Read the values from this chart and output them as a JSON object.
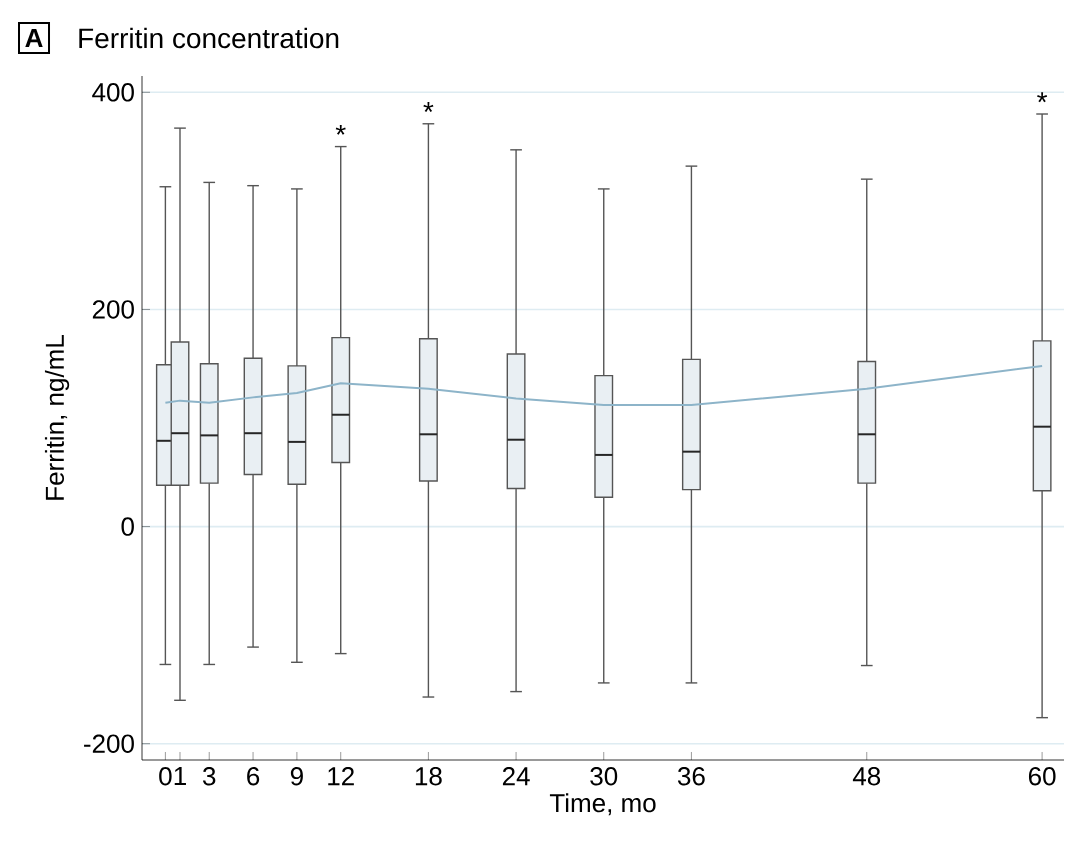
{
  "chart_data": {
    "type": "box",
    "title": "Ferritin concentration",
    "xlabel": "Time, mo",
    "ylabel": "Ferritin, ng/mL",
    "annotations": [
      "A",
      {
        "text": "*",
        "x": 12,
        "y": 350
      },
      {
        "text": "*",
        "x": 18,
        "y": 371
      },
      {
        "text": "*",
        "x": 60,
        "y": 380
      }
    ],
    "x": [
      0,
      1,
      3,
      6,
      9,
      12,
      18,
      24,
      30,
      36,
      48,
      60
    ],
    "series": [
      {
        "color": "#e9eff3",
        "boxes": [
          {
            "low": -127,
            "q1": 38,
            "median": 79,
            "q3": 149,
            "high": 313
          },
          {
            "low": -160,
            "q1": 38,
            "median": 86,
            "q3": 170,
            "high": 367
          },
          {
            "low": -127,
            "q1": 40,
            "median": 84,
            "q3": 150,
            "high": 317
          },
          {
            "low": -111,
            "q1": 48,
            "median": 86,
            "q3": 155,
            "high": 314
          },
          {
            "low": -125,
            "q1": 39,
            "median": 78,
            "q3": 148,
            "high": 311
          },
          {
            "low": -117,
            "q1": 59,
            "median": 103,
            "q3": 174,
            "high": 350
          },
          {
            "low": -157,
            "q1": 42,
            "median": 85,
            "q3": 173,
            "high": 371
          },
          {
            "low": -152,
            "q1": 35,
            "median": 80,
            "q3": 159,
            "high": 347
          },
          {
            "low": -144,
            "q1": 27,
            "median": 66,
            "q3": 139,
            "high": 311
          },
          {
            "low": -144,
            "q1": 34,
            "median": 69,
            "q3": 154,
            "high": 332
          },
          {
            "low": -128,
            "q1": 40,
            "median": 85,
            "q3": 152,
            "high": 320
          },
          {
            "low": -176,
            "q1": 33,
            "median": 92,
            "q3": 171,
            "high": 380
          }
        ]
      },
      {
        "type": "line",
        "color": "#8db4c9",
        "values": [
          114,
          116,
          114,
          119,
          123,
          132,
          127,
          118,
          112,
          112,
          127,
          148
        ]
      }
    ],
    "xlim": [
      -1.6,
      61.5
    ],
    "ylim": [
      -215,
      415
    ],
    "xticks": [
      0,
      1,
      3,
      6,
      9,
      12,
      18,
      24,
      30,
      36,
      48,
      60
    ],
    "yticks": [
      -200,
      0,
      200,
      400
    ],
    "grid": "y"
  }
}
